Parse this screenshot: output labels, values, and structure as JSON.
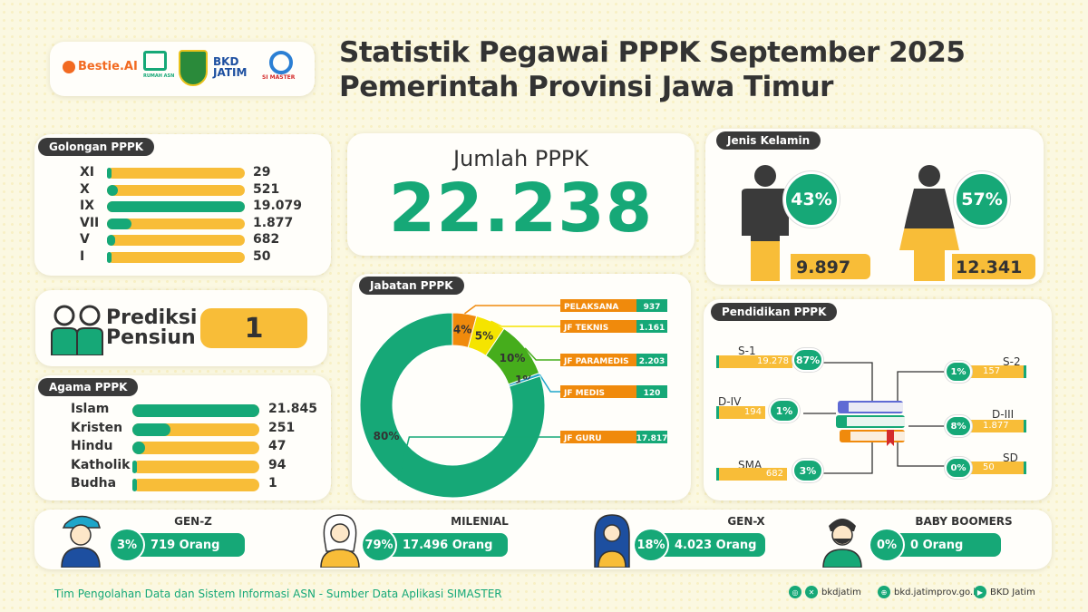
{
  "header": {
    "title_line1": "Statistik Pegawai PPPK September 2025",
    "title_line2": "Pemerintah Provinsi Jawa Timur",
    "logos": [
      "Bestie.AI",
      "RUMAH ASN",
      "BKD JATIM",
      "SI MASTER"
    ]
  },
  "golongan": {
    "tag": "Golongan PPPK",
    "items": [
      {
        "label": "XI",
        "value": "29",
        "fraction": 0.02
      },
      {
        "label": "X",
        "value": "521",
        "fraction": 0.08
      },
      {
        "label": "IX",
        "value": "19.079",
        "fraction": 1.0
      },
      {
        "label": "VII",
        "value": "1.877",
        "fraction": 0.18
      },
      {
        "label": "V",
        "value": "682",
        "fraction": 0.06
      },
      {
        "label": "I",
        "value": "50",
        "fraction": 0.03
      }
    ]
  },
  "jumlah": {
    "label": "Jumlah PPPK",
    "value": "22.238"
  },
  "gender": {
    "tag": "Jenis Kelamin",
    "male": {
      "pct": "43%",
      "count": "9.897",
      "fill": 0.43
    },
    "female": {
      "pct": "57%",
      "count": "12.341",
      "fill": 0.57
    }
  },
  "pensiun": {
    "label1": "Prediksi",
    "label2": "Pensiun",
    "value": "1"
  },
  "agama": {
    "tag": "Agama PPPK",
    "items": [
      {
        "label": "Islam",
        "value": "21.845",
        "fraction": 1.0
      },
      {
        "label": "Kristen",
        "value": "251",
        "fraction": 0.3
      },
      {
        "label": "Hindu",
        "value": "47",
        "fraction": 0.1
      },
      {
        "label": "Katholik",
        "value": "94",
        "fraction": 0.03
      },
      {
        "label": "Budha",
        "value": "1",
        "fraction": 0.0
      }
    ]
  },
  "chart_data": {
    "type": "pie",
    "title": "Jabatan PPPK",
    "slices": [
      {
        "name": "PELAKSANA",
        "value": 937,
        "pct_label": "4%",
        "color": "#f08a0c"
      },
      {
        "name": "JF TEKNIS",
        "value": 1161,
        "pct_label": "5%",
        "color": "#f5e400"
      },
      {
        "name": "JF PARAMEDIS",
        "value": 2203,
        "pct_label": "10%",
        "color": "#46ad1c"
      },
      {
        "name": "JF MEDIS",
        "value": 120,
        "pct_label": "1%",
        "color": "#1ea6c9"
      },
      {
        "name": "JF GURU",
        "value": 17817,
        "pct_label": "80%",
        "color": "#16a877"
      }
    ],
    "legend_values": [
      "937",
      "1.161",
      "2.203",
      "120",
      "17.817"
    ]
  },
  "pendidikan": {
    "tag": "Pendidikan PPPK",
    "left": [
      {
        "label": "S-1",
        "count": "19.278",
        "pct": "87%"
      },
      {
        "label": "D-IV",
        "count": "194",
        "pct": "1%"
      },
      {
        "label": "SMA",
        "count": "682",
        "pct": "3%"
      }
    ],
    "right": [
      {
        "label": "S-2",
        "count": "157",
        "pct": "1%"
      },
      {
        "label": "D-III",
        "count": "1.877",
        "pct": "8%"
      },
      {
        "label": "SD",
        "count": "50",
        "pct": "0%"
      }
    ]
  },
  "generations": [
    {
      "name": "GEN-Z",
      "pct": "3%",
      "count": "719 Orang"
    },
    {
      "name": "MILENIAL",
      "pct": "79%",
      "count": "17.496 Orang"
    },
    {
      "name": "GEN-X",
      "pct": "18%",
      "count": "4.023 Orang"
    },
    {
      "name": "BABY BOOMERS",
      "pct": "0%",
      "count": "0 Orang"
    }
  ],
  "footer": {
    "text": "Tim Pengolahan Data dan Sistem Informasi ASN - Sumber Data Aplikasi SIMASTER",
    "social1": "bkdjatim",
    "social2": "bkd.jatimprov.go.id",
    "social3": "BKD Jatim"
  },
  "colors": {
    "teal": "#16a877",
    "yellow": "#f8bd38",
    "dark": "#3a3a3a"
  }
}
